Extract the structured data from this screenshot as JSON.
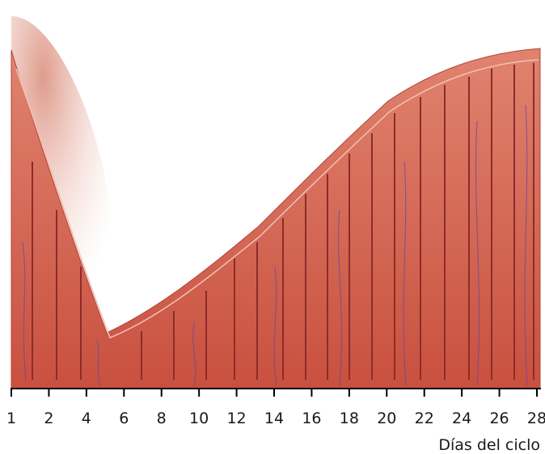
{
  "axis": {
    "title": "Días del ciclo",
    "ticks": [
      1,
      2,
      4,
      6,
      8,
      10,
      12,
      14,
      16,
      18,
      20,
      22,
      24,
      26,
      28
    ]
  }
}
